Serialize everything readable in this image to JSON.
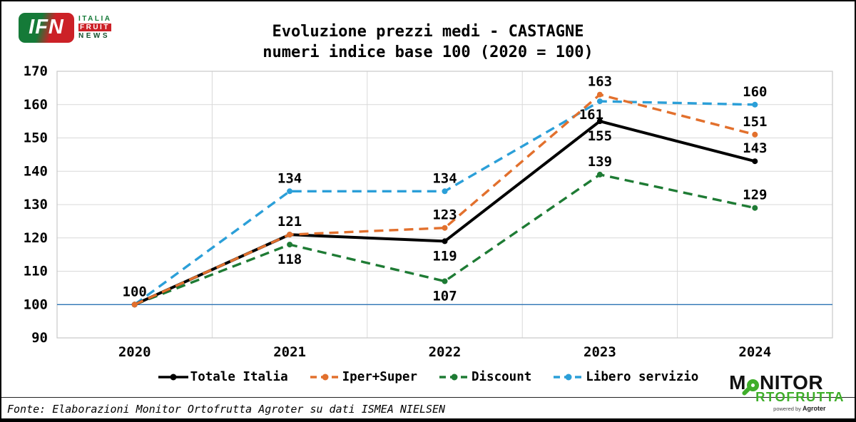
{
  "ifn_logo": {
    "abbr": "IFN",
    "word1": "ITALIA",
    "word2": "FRUIT",
    "word3": "NEWS"
  },
  "chart_data": {
    "type": "line",
    "title": "Evoluzione prezzi medi - CASTAGNE",
    "subtitle": "numeri indice base 100 (2020 = 100)",
    "categories": [
      "2020",
      "2021",
      "2022",
      "2023",
      "2024"
    ],
    "series": [
      {
        "name": "Totale Italia",
        "color": "#000000",
        "style": "solid",
        "values": [
          100,
          121,
          119,
          155,
          143
        ]
      },
      {
        "name": "Iper+Super",
        "color": "#E2702D",
        "style": "dashed",
        "values": [
          100,
          121,
          123,
          163,
          151
        ]
      },
      {
        "name": "Discount",
        "color": "#1E7B34",
        "style": "dashed",
        "values": [
          100,
          118,
          107,
          139,
          129
        ]
      },
      {
        "name": "Libero servizio",
        "color": "#2B9FD8",
        "style": "dashed",
        "values": [
          100,
          134,
          134,
          161,
          160
        ]
      }
    ],
    "yticks": [
      90,
      100,
      110,
      120,
      130,
      140,
      150,
      160,
      170
    ],
    "ylim": [
      90,
      170
    ],
    "baseline": {
      "value": 100,
      "color": "#2E75B6"
    },
    "grid": true,
    "legend_position": "bottom"
  },
  "footer": {
    "source": "Fonte: Elaborazioni Monitor Ortofrutta Agroter su dati ISMEA NIELSEN"
  },
  "monitor_logo": {
    "m": "M",
    "nitor": "NITOR",
    "line2": "RTOFRUTTA",
    "powered_by": "powered by",
    "brand": "Agroter",
    "green": "#3FAE2A"
  }
}
